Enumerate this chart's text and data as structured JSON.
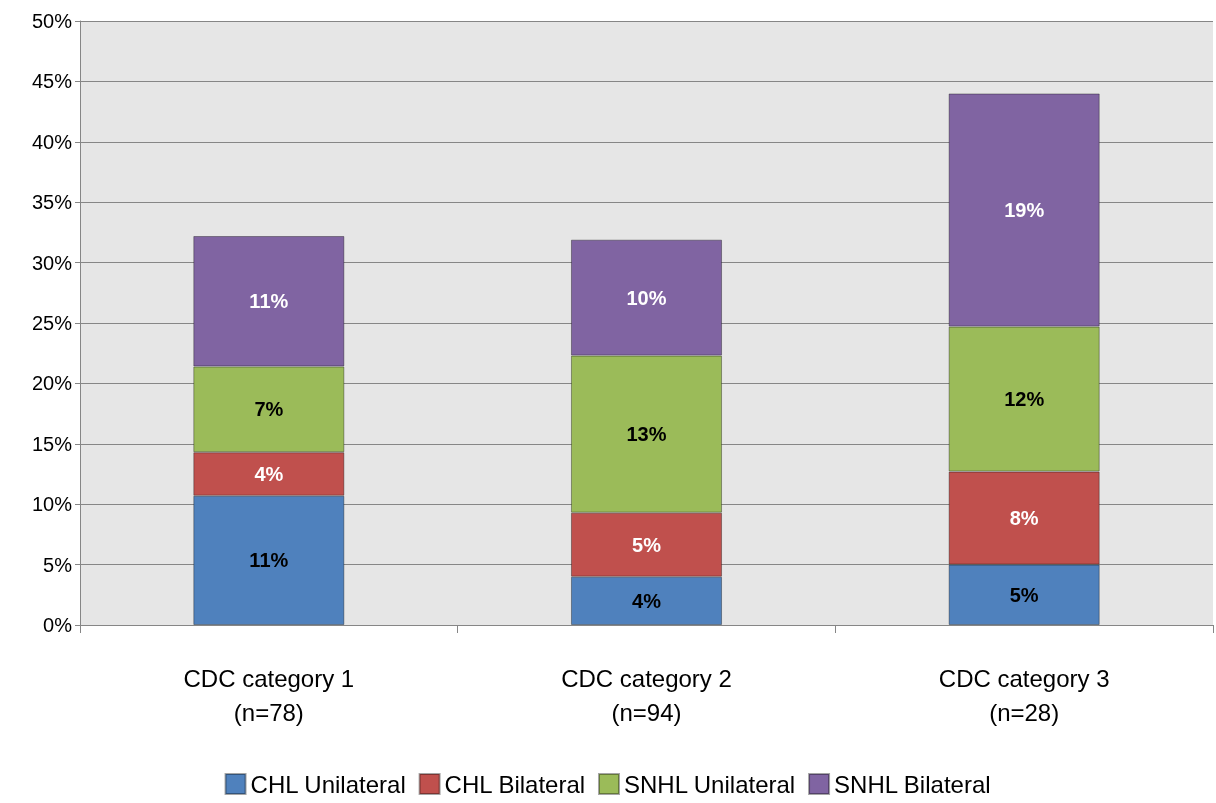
{
  "chart_data": {
    "type": "bar",
    "stacked": true,
    "categories": [
      "CDC category 1\n(n=78)",
      "CDC category 2\n(n=94)",
      "CDC category 3\n(n=28)"
    ],
    "series": [
      {
        "name": "CHL Unilateral",
        "color": "#4f81bd",
        "values": [
          10.7,
          4.0,
          5.0
        ],
        "value_labels": [
          "11%",
          "4%",
          "5%"
        ]
      },
      {
        "name": "CHL Bilateral",
        "color": "#c0504d",
        "values": [
          3.6,
          5.3,
          7.7
        ],
        "value_labels": [
          "4%",
          "5%",
          "8%"
        ]
      },
      {
        "name": "SNHL Unilateral",
        "color": "#9bbb59",
        "values": [
          7.1,
          13.0,
          12.0
        ],
        "value_labels": [
          "7%",
          "13%",
          "12%"
        ]
      },
      {
        "name": "SNHL Bilateral",
        "color": "#8064a2",
        "values": [
          10.8,
          9.6,
          19.3
        ],
        "value_labels": [
          "11%",
          "10%",
          "19%"
        ]
      }
    ],
    "ylim": [
      0,
      50
    ],
    "yticks": [
      {
        "value": 0,
        "label": "0%"
      },
      {
        "value": 5,
        "label": "5%"
      },
      {
        "value": 10,
        "label": "10%"
      },
      {
        "value": 15,
        "label": "15%"
      },
      {
        "value": 20,
        "label": "20%"
      },
      {
        "value": 25,
        "label": "25%"
      },
      {
        "value": 30,
        "label": "30%"
      },
      {
        "value": 35,
        "label": "35%"
      },
      {
        "value": 40,
        "label": "40%"
      },
      {
        "value": 45,
        "label": "45%"
      },
      {
        "value": 50,
        "label": "50%"
      }
    ],
    "grid": "y",
    "legend": "bottom"
  }
}
